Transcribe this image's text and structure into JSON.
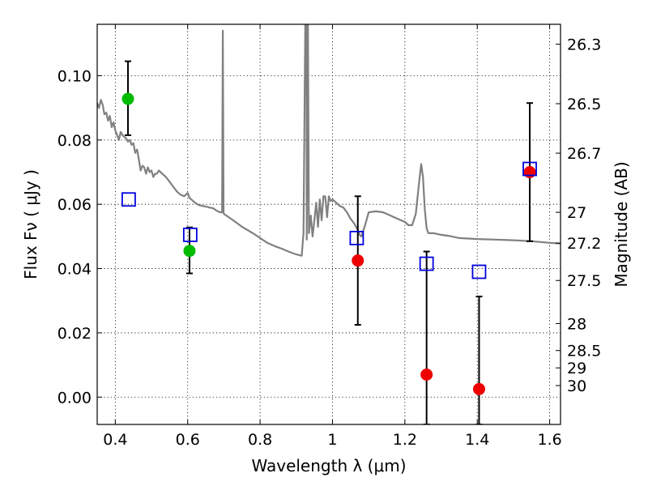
{
  "chart_data": {
    "type": "scatter",
    "xlabel": "Wavelength  λ (μm)",
    "ylabel": "Flux  Fν  ( μJy )",
    "y2label": "Magnitude (AB)",
    "xlim": [
      0.35,
      1.63
    ],
    "ylim": [
      -0.0085,
      0.116
    ],
    "grid": true,
    "x_ticks": [
      0.4,
      0.6,
      0.8,
      1.0,
      1.2,
      1.4,
      1.6
    ],
    "x_tick_labels": [
      "0.4",
      "0.6",
      "0.8",
      "1",
      "1.2",
      "1.4",
      "1.6"
    ],
    "y_ticks": [
      0.0,
      0.02,
      0.04,
      0.06,
      0.08,
      0.1
    ],
    "y_tick_labels": [
      "0.00",
      "0.02",
      "0.04",
      "0.06",
      "0.08",
      "0.10"
    ],
    "y2_ticks": [
      {
        "label": "26.3",
        "flux": 0.1098
      },
      {
        "label": "26.5",
        "flux": 0.0913
      },
      {
        "label": "26.7",
        "flux": 0.0759
      },
      {
        "label": "27",
        "flux": 0.0575
      },
      {
        "label": "27.2",
        "flux": 0.0479
      },
      {
        "label": "27.5",
        "flux": 0.0363
      },
      {
        "label": "28",
        "flux": 0.0229
      },
      {
        "label": "28.5",
        "flux": 0.0145
      },
      {
        "label": "29",
        "flux": 0.0091
      },
      {
        "label": "30",
        "flux": 0.0036
      }
    ],
    "series": [
      {
        "kind": "line",
        "color": "#808080",
        "points": [
          [
            0.35,
            0.0915
          ],
          [
            0.355,
            0.09
          ],
          [
            0.36,
            0.0925
          ],
          [
            0.365,
            0.091
          ],
          [
            0.37,
            0.088
          ],
          [
            0.375,
            0.0885
          ],
          [
            0.38,
            0.086
          ],
          [
            0.385,
            0.0875
          ],
          [
            0.39,
            0.084
          ],
          [
            0.395,
            0.0855
          ],
          [
            0.4,
            0.083
          ],
          [
            0.405,
            0.0815
          ],
          [
            0.41,
            0.08
          ],
          [
            0.415,
            0.0825
          ],
          [
            0.42,
            0.0815
          ],
          [
            0.425,
            0.081
          ],
          [
            0.43,
            0.0805
          ],
          [
            0.435,
            0.0795
          ],
          [
            0.44,
            0.08
          ],
          [
            0.445,
            0.0785
          ],
          [
            0.45,
            0.079
          ],
          [
            0.455,
            0.076
          ],
          [
            0.46,
            0.077
          ],
          [
            0.465,
            0.074
          ],
          [
            0.47,
            0.0705
          ],
          [
            0.475,
            0.072
          ],
          [
            0.48,
            0.0715
          ],
          [
            0.485,
            0.0695
          ],
          [
            0.49,
            0.0715
          ],
          [
            0.495,
            0.07
          ],
          [
            0.5,
            0.0705
          ],
          [
            0.505,
            0.0685
          ],
          [
            0.51,
            0.0695
          ],
          [
            0.515,
            0.0695
          ],
          [
            0.52,
            0.0705
          ],
          [
            0.53,
            0.0695
          ],
          [
            0.54,
            0.0685
          ],
          [
            0.55,
            0.067
          ],
          [
            0.56,
            0.0655
          ],
          [
            0.57,
            0.064
          ],
          [
            0.575,
            0.0635
          ],
          [
            0.58,
            0.063
          ],
          [
            0.59,
            0.0625
          ],
          [
            0.6,
            0.0635
          ],
          [
            0.605,
            0.062
          ],
          [
            0.61,
            0.0615
          ],
          [
            0.62,
            0.0605
          ],
          [
            0.63,
            0.0598
          ],
          [
            0.64,
            0.0595
          ],
          [
            0.65,
            0.0593
          ],
          [
            0.66,
            0.059
          ],
          [
            0.67,
            0.0588
          ],
          [
            0.68,
            0.058
          ],
          [
            0.69,
            0.0575
          ],
          [
            0.695,
            0.0575
          ],
          [
            0.697,
            0.114
          ],
          [
            0.699,
            0.0575
          ],
          [
            0.7,
            0.057
          ],
          [
            0.72,
            0.0555
          ],
          [
            0.75,
            0.053
          ],
          [
            0.78,
            0.051
          ],
          [
            0.8,
            0.0495
          ],
          [
            0.82,
            0.048
          ],
          [
            0.84,
            0.047
          ],
          [
            0.86,
            0.0462
          ],
          [
            0.88,
            0.0452
          ],
          [
            0.9,
            0.0444
          ],
          [
            0.915,
            0.044
          ],
          [
            0.92,
            0.051
          ],
          [
            0.925,
            0.12
          ],
          [
            0.928,
            0.12
          ],
          [
            0.929,
            0.049
          ],
          [
            0.932,
            0.12
          ],
          [
            0.935,
            0.051
          ],
          [
            0.94,
            0.0565
          ],
          [
            0.945,
            0.05
          ],
          [
            0.95,
            0.055
          ],
          [
            0.955,
            0.0605
          ],
          [
            0.96,
            0.053
          ],
          [
            0.965,
            0.0615
          ],
          [
            0.97,
            0.055
          ],
          [
            0.975,
            0.0625
          ],
          [
            0.98,
            0.0625
          ],
          [
            0.985,
            0.056
          ],
          [
            0.99,
            0.0625
          ],
          [
            0.995,
            0.061
          ],
          [
            1.0,
            0.0615
          ],
          [
            1.01,
            0.0605
          ],
          [
            1.02,
            0.0595
          ],
          [
            1.03,
            0.059
          ],
          [
            1.04,
            0.0575
          ],
          [
            1.05,
            0.0555
          ],
          [
            1.06,
            0.054
          ],
          [
            1.07,
            0.052
          ],
          [
            1.075,
            0.0505
          ],
          [
            1.08,
            0.05
          ],
          [
            1.09,
            0.0535
          ],
          [
            1.1,
            0.0575
          ],
          [
            1.12,
            0.0578
          ],
          [
            1.14,
            0.0575
          ],
          [
            1.16,
            0.0565
          ],
          [
            1.18,
            0.0555
          ],
          [
            1.2,
            0.0545
          ],
          [
            1.21,
            0.0535
          ],
          [
            1.22,
            0.0535
          ],
          [
            1.23,
            0.057
          ],
          [
            1.24,
            0.0675
          ],
          [
            1.245,
            0.0725
          ],
          [
            1.25,
            0.0685
          ],
          [
            1.255,
            0.0585
          ],
          [
            1.26,
            0.0525
          ],
          [
            1.265,
            0.051
          ],
          [
            1.28,
            0.051
          ],
          [
            1.3,
            0.0505
          ],
          [
            1.32,
            0.0502
          ],
          [
            1.35,
            0.0495
          ],
          [
            1.4,
            0.0492
          ],
          [
            1.45,
            0.049
          ],
          [
            1.5,
            0.0488
          ],
          [
            1.55,
            0.0485
          ],
          [
            1.6,
            0.048
          ],
          [
            1.63,
            0.0478
          ]
        ]
      },
      {
        "kind": "points",
        "marker": "filled-circle",
        "color": "#00bb00",
        "points": [
          {
            "x": 0.435,
            "y": 0.0928,
            "yerr_low": 0.0815,
            "yerr_high": 0.1045
          },
          {
            "x": 0.605,
            "y": 0.0455,
            "yerr_low": 0.0385,
            "yerr_high": 0.0528
          }
        ]
      },
      {
        "kind": "points",
        "marker": "filled-circle",
        "color": "#ee0000",
        "points": [
          {
            "x": 1.07,
            "y": 0.0425,
            "yerr_low": 0.0225,
            "yerr_high": 0.0625
          },
          {
            "x": 1.26,
            "y": 0.007,
            "yerr_low": -0.0085,
            "yerr_high": 0.0453
          },
          {
            "x": 1.405,
            "y": 0.0025,
            "yerr_low": -0.0085,
            "yerr_high": 0.0313
          },
          {
            "x": 1.545,
            "y": 0.07,
            "yerr_low": 0.0485,
            "yerr_high": 0.0915
          }
        ]
      },
      {
        "kind": "points",
        "marker": "open-square",
        "color": "#0000dd",
        "points": [
          {
            "x": 0.437,
            "y": 0.0615
          },
          {
            "x": 0.607,
            "y": 0.0505
          },
          {
            "x": 1.067,
            "y": 0.0495
          },
          {
            "x": 1.26,
            "y": 0.0415
          },
          {
            "x": 1.405,
            "y": 0.039
          },
          {
            "x": 1.545,
            "y": 0.071
          }
        ]
      }
    ]
  }
}
